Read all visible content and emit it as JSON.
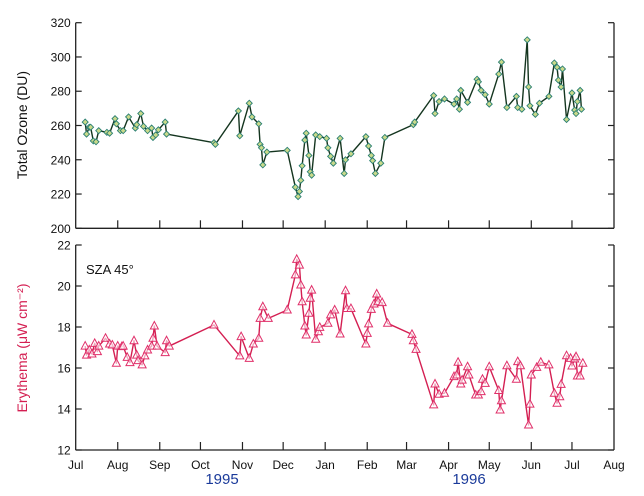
{
  "chart_data": [
    {
      "type": "line",
      "ylabel": "Total Ozone (DU)",
      "ylim": [
        200,
        320
      ],
      "yticks": [
        200,
        220,
        240,
        260,
        280,
        300,
        320
      ],
      "xlim": [
        "1995-07-01",
        "1996-08-01"
      ],
      "marker": "diamond",
      "colors": {
        "line": "#14351f",
        "marker_edge": "#2a7f73",
        "marker_fill": "#c9d98a"
      },
      "series": [
        {
          "x": [
            "1995-07-08",
            "1995-07-09",
            "1995-07-11",
            "1995-07-12",
            "1995-07-14",
            "1995-07-16",
            "1995-07-18",
            "1995-07-24",
            "1995-07-26",
            "1995-07-30",
            "1995-07-31",
            "1995-08-03",
            "1995-08-05",
            "1995-08-09",
            "1995-08-14",
            "1995-08-15",
            "1995-08-18",
            "1995-08-20",
            "1995-08-23",
            "1995-08-26",
            "1995-08-27",
            "1995-08-29",
            "1995-08-31",
            "1995-09-05",
            "1995-09-06",
            "1995-10-11",
            "1995-10-12",
            "1995-10-29",
            "1995-10-30",
            "1995-11-06",
            "1995-11-08",
            "1995-11-13",
            "1995-11-14",
            "1995-11-15",
            "1995-11-16",
            "1995-11-19",
            "1995-12-04",
            "1995-12-10",
            "1995-12-12",
            "1995-12-13",
            "1995-12-14",
            "1995-12-15",
            "1995-12-17",
            "1995-12-18",
            "1995-12-20",
            "1995-12-21",
            "1995-12-22",
            "1995-12-25",
            "1995-12-28",
            "1996-01-02",
            "1996-01-03",
            "1996-01-05",
            "1996-01-07",
            "1996-01-12",
            "1996-01-15",
            "1996-01-16",
            "1996-01-20",
            "1996-01-31",
            "1996-02-02",
            "1996-02-04",
            "1996-02-05",
            "1996-02-07",
            "1996-02-11",
            "1996-02-14",
            "1996-03-06",
            "1996-03-07",
            "1996-03-21",
            "1996-03-22",
            "1996-03-25",
            "1996-03-29",
            "1996-04-05",
            "1996-04-07",
            "1996-04-09",
            "1996-04-10",
            "1996-04-15",
            "1996-04-22",
            "1996-04-23",
            "1996-04-25",
            "1996-04-28",
            "1996-05-01",
            "1996-05-08",
            "1996-05-10",
            "1996-05-14",
            "1996-05-21",
            "1996-05-22",
            "1996-05-25",
            "1996-05-29",
            "1996-05-30",
            "1996-05-31",
            "1996-06-04",
            "1996-06-07",
            "1996-06-14",
            "1996-06-18",
            "1996-06-20",
            "1996-06-21",
            "1996-06-23",
            "1996-06-24",
            "1996-06-27",
            "1996-07-01",
            "1996-07-03",
            "1996-07-04",
            "1996-07-05",
            "1996-07-07",
            "1996-07-08"
          ],
          "y": [
            262,
            255,
            259,
            259,
            251,
            250.5,
            257,
            256,
            255.5,
            264,
            261,
            257,
            257,
            265,
            258.5,
            260.5,
            267,
            259.5,
            257,
            258.5,
            253,
            254.5,
            257.5,
            262,
            255,
            250,
            249,
            268.5,
            254,
            273,
            265,
            261,
            249,
            247,
            237,
            244.5,
            245.5,
            224,
            218.5,
            221.5,
            228,
            236.5,
            251.5,
            255.5,
            242.5,
            233,
            231,
            254.5,
            253.5,
            252.5,
            247,
            242,
            238,
            252.5,
            232,
            240,
            243.5,
            253.5,
            248,
            242.5,
            239.5,
            232,
            238,
            253,
            260.5,
            262,
            277.5,
            267,
            274,
            275.5,
            272.5,
            275.5,
            269.5,
            280.5,
            273.5,
            287,
            285.5,
            280.5,
            278,
            272.5,
            290,
            297,
            270.5,
            277,
            270.5,
            269.5,
            310,
            282.5,
            271.5,
            266.5,
            273,
            277,
            296.5,
            294,
            286.5,
            282.5,
            293,
            263.5,
            279,
            269,
            267,
            274,
            280.5,
            269.5
          ]
        }
      ]
    },
    {
      "type": "line",
      "ylabel": "Erythema (μW cm⁻²)",
      "annotation": "SZA 45°",
      "ylim": [
        12,
        22
      ],
      "yticks": [
        12,
        14,
        16,
        18,
        20,
        22
      ],
      "xlim": [
        "1995-07-01",
        "1996-08-01"
      ],
      "xticklabels": [
        "Jul",
        "Aug",
        "Sep",
        "Oct",
        "Nov",
        "Dec",
        "Jan",
        "Feb",
        "Mar",
        "Apr",
        "May",
        "Jun",
        "Jul",
        "Aug"
      ],
      "years": [
        "1995",
        "1996"
      ],
      "marker": "triangle",
      "colors": {
        "line": "#d41f52",
        "marker_edge": "#e0306a"
      },
      "series": [
        {
          "x": [
            "1995-07-08",
            "1995-07-09",
            "1995-07-11",
            "1995-07-13",
            "1995-07-15",
            "1995-07-17",
            "1995-07-18",
            "1995-07-23",
            "1995-07-26",
            "1995-07-28",
            "1995-07-31",
            "1995-08-01",
            "1995-08-04",
            "1995-08-05",
            "1995-08-08",
            "1995-08-10",
            "1995-08-13",
            "1995-08-15",
            "1995-08-16",
            "1995-08-19",
            "1995-08-21",
            "1995-08-23",
            "1995-08-26",
            "1995-08-27",
            "1995-08-28",
            "1995-08-30",
            "1995-09-05",
            "1995-09-06",
            "1995-09-08",
            "1995-10-11",
            "1995-10-30",
            "1995-10-31",
            "1995-11-06",
            "1995-11-09",
            "1995-11-13",
            "1995-11-14",
            "1995-11-16",
            "1995-11-20",
            "1995-12-04",
            "1995-12-10",
            "1995-12-11",
            "1995-12-13",
            "1995-12-14",
            "1995-12-15",
            "1995-12-17",
            "1995-12-18",
            "1995-12-20",
            "1995-12-21",
            "1995-12-22",
            "1995-12-25",
            "1995-12-27",
            "1995-12-28",
            "1996-01-03",
            "1996-01-05",
            "1996-01-08",
            "1996-01-12",
            "1996-01-16",
            "1996-01-17",
            "1996-01-20",
            "1996-01-31",
            "1996-02-01",
            "1996-02-02",
            "1996-02-04",
            "1996-02-06",
            "1996-02-08",
            "1996-02-09",
            "1996-02-12",
            "1996-02-16",
            "1996-03-05",
            "1996-03-06",
            "1996-03-08",
            "1996-03-21",
            "1996-03-22",
            "1996-03-25",
            "1996-03-29",
            "1996-04-05",
            "1996-04-07",
            "1996-04-08",
            "1996-04-10",
            "1996-04-11",
            "1996-04-15",
            "1996-04-16",
            "1996-04-21",
            "1996-04-23",
            "1996-04-25",
            "1996-04-26",
            "1996-04-28",
            "1996-05-01",
            "1996-05-08",
            "1996-05-09",
            "1996-05-10",
            "1996-05-14",
            "1996-05-21",
            "1996-05-22",
            "1996-05-24",
            "1996-05-30",
            "1996-05-31",
            "1996-06-01",
            "1996-06-05",
            "1996-06-08",
            "1996-06-14",
            "1996-06-18",
            "1996-06-20",
            "1996-06-22",
            "1996-06-23",
            "1996-06-27",
            "1996-06-30",
            "1996-07-01",
            "1996-07-03",
            "1996-07-04",
            "1996-07-05",
            "1996-07-07",
            "1996-07-09"
          ],
          "y": [
            17.07,
            16.63,
            16.88,
            16.68,
            17.2,
            16.8,
            17.07,
            17.45,
            17.17,
            17.12,
            16.23,
            17.07,
            17.04,
            17.07,
            16.52,
            16.26,
            17.33,
            16.63,
            16.36,
            16.15,
            16.59,
            16.88,
            17.07,
            17.45,
            18.05,
            17.07,
            16.75,
            17.33,
            17.07,
            18.1,
            16.59,
            17.53,
            16.47,
            17.17,
            17.45,
            18.42,
            18.99,
            18.42,
            18.83,
            20.54,
            21.3,
            21.02,
            20.05,
            19.23,
            18.05,
            17.61,
            18.67,
            19.4,
            19.8,
            17.4,
            17.77,
            17.98,
            18.18,
            18.59,
            18.83,
            17.66,
            19.77,
            18.9,
            18.9,
            17.17,
            17.69,
            18.15,
            18.86,
            19.12,
            19.61,
            19.23,
            19.19,
            18.18,
            17.64,
            17.33,
            16.91,
            14.2,
            15.22,
            14.72,
            14.77,
            15.58,
            15.66,
            16.28,
            15.22,
            15.41,
            16.06,
            15.66,
            14.68,
            14.68,
            14.85,
            15.45,
            15.25,
            16.06,
            14.9,
            13.95,
            14.4,
            16.11,
            15.45,
            16.31,
            16.11,
            13.22,
            14.24,
            15.66,
            16.03,
            16.28,
            16.15,
            14.77,
            14.28,
            14.6,
            15.2,
            16.6,
            16.47,
            16.1,
            16.44,
            16.55,
            15.61,
            15.61,
            16.23
          ]
        }
      ]
    }
  ]
}
